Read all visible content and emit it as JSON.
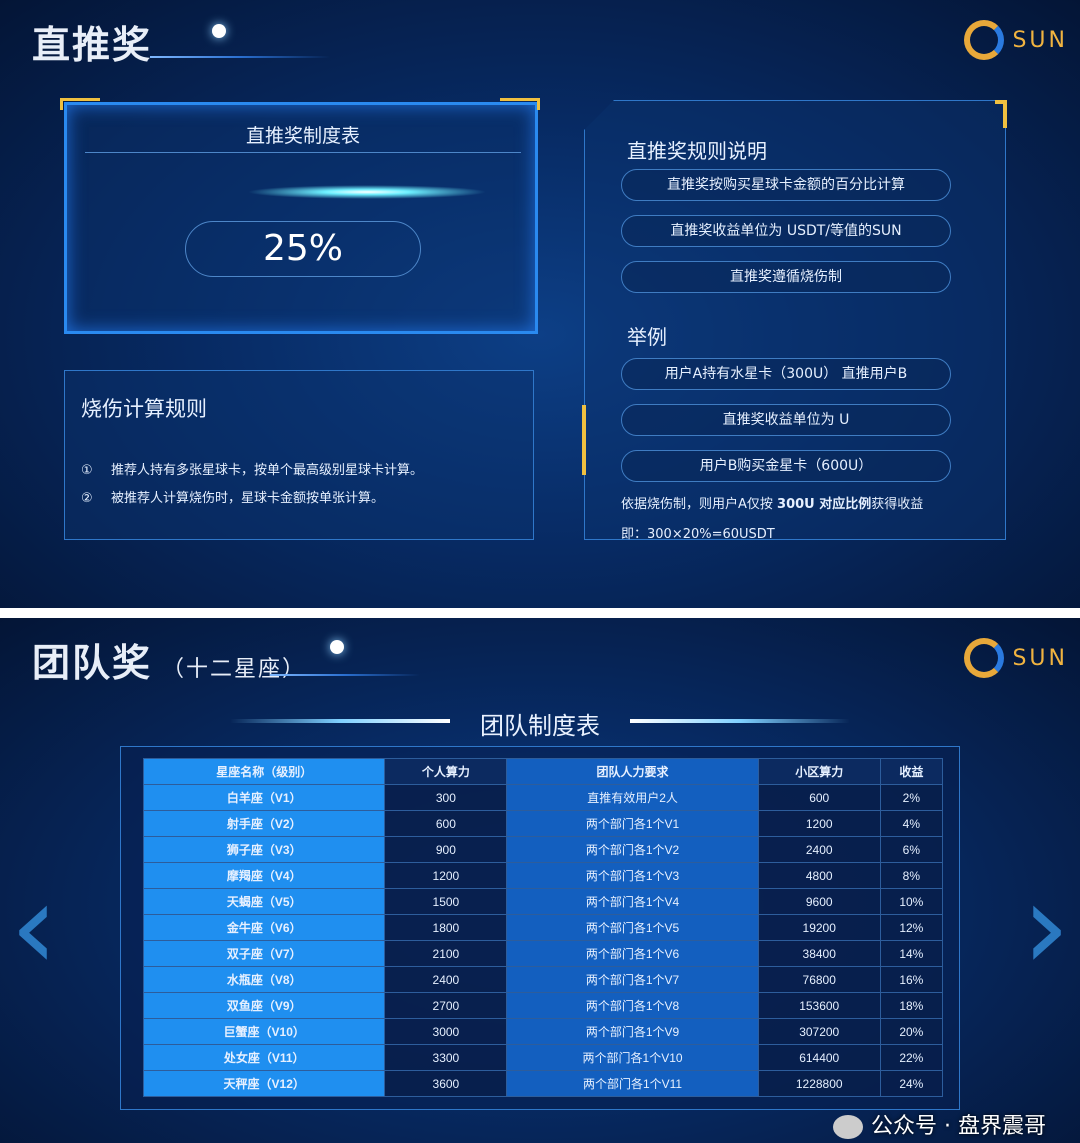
{
  "slide1": {
    "title": "直推奖",
    "logo_text": "SUN",
    "rate_table": {
      "header": "直推奖制度表",
      "value": "25%"
    },
    "burn_rules": {
      "title": "烧伤计算规则",
      "items": [
        {
          "num": "①",
          "text": "推荐人持有多张星球卡，按单个最高级别星球卡计算。"
        },
        {
          "num": "②",
          "text": "被推荐人计算烧伤时，星球卡金额按单张计算。"
        }
      ]
    },
    "rules": {
      "title": "直推奖规则说明",
      "items": [
        "直推奖按购买星球卡金额的百分比计算",
        "直推奖收益单位为 USDT/等值的SUN",
        "直推奖遵循烧伤制"
      ]
    },
    "example": {
      "title": "举例",
      "items": [
        "用户A持有水星卡（300U）  直推用户B",
        "直推奖收益单位为 U",
        "用户B购买金星卡（600U）"
      ],
      "note_pre": "依据烧伤制，则用户A仅按 ",
      "note_bold": "300U 对应比例",
      "note_post": "获得收益",
      "formula": "即：300×20%=60USDT"
    }
  },
  "slide2": {
    "title": "团队奖",
    "subtitle": "（十二星座）",
    "logo_text": "SUN",
    "table_title": "团队制度表",
    "columns": [
      "星座名称（级别）",
      "个人算力",
      "团队人力要求",
      "小区算力",
      "收益"
    ],
    "rows": [
      [
        "白羊座（V1）",
        "300",
        "直推有效用户2人",
        "600",
        "2%"
      ],
      [
        "射手座（V2）",
        "600",
        "两个部门各1个V1",
        "1200",
        "4%"
      ],
      [
        "狮子座（V3）",
        "900",
        "两个部门各1个V2",
        "2400",
        "6%"
      ],
      [
        "摩羯座（V4）",
        "1200",
        "两个部门各1个V3",
        "4800",
        "8%"
      ],
      [
        "天蝎座（V5）",
        "1500",
        "两个部门各1个V4",
        "9600",
        "10%"
      ],
      [
        "金牛座（V6）",
        "1800",
        "两个部门各1个V5",
        "19200",
        "12%"
      ],
      [
        "双子座（V7）",
        "2100",
        "两个部门各1个V6",
        "38400",
        "14%"
      ],
      [
        "水瓶座（V8）",
        "2400",
        "两个部门各1个V7",
        "76800",
        "16%"
      ],
      [
        "双鱼座（V9）",
        "2700",
        "两个部门各1个V8",
        "153600",
        "18%"
      ],
      [
        "巨蟹座（V10）",
        "3000",
        "两个部门各1个V9",
        "307200",
        "20%"
      ],
      [
        "处女座（V11）",
        "3300",
        "两个部门各1个V10",
        "614400",
        "22%"
      ],
      [
        "天秤座（V12）",
        "3600",
        "两个部门各1个V11",
        "1228800",
        "24%"
      ]
    ],
    "watermark": "公众号 · 盘界震哥"
  }
}
